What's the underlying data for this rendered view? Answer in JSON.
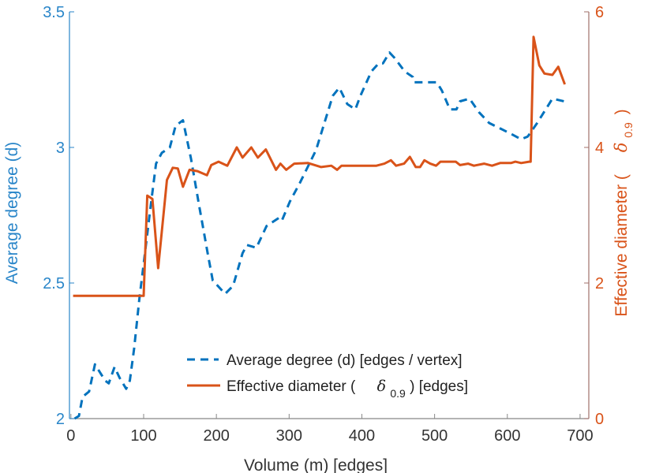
{
  "chart_data": {
    "type": "line",
    "title": "",
    "xlabel": "Volume (m) [edges]",
    "ylabel_left": "Average degree (d)",
    "ylabel_right_prefix": "Effective diameter (",
    "ylabel_right_symbol": "δ",
    "ylabel_right_sub": "0.9",
    "ylabel_right_suffix": ")",
    "xlim": [
      -2,
      712
    ],
    "ylim_left": [
      2,
      3.5
    ],
    "ylim_right": [
      0,
      6
    ],
    "xticks": [
      "0",
      "100",
      "200",
      "300",
      "400",
      "500",
      "600",
      "700"
    ],
    "yticks_left": [
      "2",
      "2.5",
      "3",
      "3.5"
    ],
    "yticks_right": [
      "0",
      "2",
      "4",
      "6"
    ],
    "grid": false,
    "legend_position": "bottom-center",
    "colors": {
      "left": "#0072bd",
      "right": "#d95319",
      "axis_left": "#2a86c9",
      "axis_right": "#a0706a",
      "axis_x": "#888888"
    },
    "legend": {
      "entry1": "Average degree (d) [edges / vertex]",
      "entry2_prefix": "Effective diameter (",
      "entry2_symbol": "δ",
      "entry2_sub": "0.9",
      "entry2_suffix": ") [edges]"
    },
    "series": [
      {
        "name": "Average degree (d) [edges / vertex]",
        "axis": "left",
        "style": "dashed",
        "x": [
          5,
          11,
          16,
          25,
          33,
          47,
          52,
          60,
          67,
          76,
          81,
          87,
          94,
          100,
          109,
          117,
          125,
          136,
          144,
          154,
          165,
          176,
          188,
          195,
          212,
          223,
          236,
          242,
          255,
          269,
          286,
          290,
          301,
          315,
          337,
          360,
          369,
          380,
          391,
          398,
          413,
          423,
          429,
          438,
          445,
          459,
          470,
          472,
          485,
          494,
          503,
          510,
          521,
          530,
          535,
          548,
          561,
          575,
          590,
          605,
          619,
          628,
          641,
          655,
          662,
          678
        ],
        "y": [
          2.0,
          2.01,
          2.08,
          2.1,
          2.2,
          2.14,
          2.13,
          2.19,
          2.15,
          2.11,
          2.14,
          2.26,
          2.44,
          2.57,
          2.77,
          2.94,
          2.98,
          3.0,
          3.08,
          3.1,
          2.96,
          2.79,
          2.61,
          2.51,
          2.46,
          2.49,
          2.61,
          2.64,
          2.63,
          2.71,
          2.74,
          2.73,
          2.8,
          2.87,
          2.99,
          3.19,
          3.22,
          3.16,
          3.14,
          3.19,
          3.28,
          3.31,
          3.31,
          3.35,
          3.33,
          3.28,
          3.26,
          3.24,
          3.24,
          3.24,
          3.24,
          3.21,
          3.14,
          3.14,
          3.17,
          3.18,
          3.13,
          3.09,
          3.07,
          3.05,
          3.03,
          3.04,
          3.09,
          3.15,
          3.18,
          3.17
        ]
      },
      {
        "name": "Effective diameter (δ0.9) [edges]",
        "axis": "right",
        "style": "solid",
        "x": [
          3,
          100,
          105,
          112,
          120,
          132,
          140,
          147,
          154,
          163,
          174,
          187,
          193,
          203,
          215,
          228,
          236,
          248,
          257,
          268,
          282,
          288,
          296,
          307,
          326,
          344,
          358,
          366,
          372,
          420,
          431,
          440,
          447,
          458,
          466,
          474,
          480,
          486,
          494,
          502,
          508,
          529,
          535,
          546,
          554,
          568,
          579,
          590,
          605,
          611,
          619,
          630,
          632,
          636,
          644,
          651,
          662,
          670,
          679
        ],
        "y": [
          1.81,
          1.81,
          3.29,
          3.24,
          2.22,
          3.52,
          3.7,
          3.69,
          3.42,
          3.67,
          3.65,
          3.59,
          3.74,
          3.79,
          3.73,
          4.0,
          3.85,
          4.0,
          3.85,
          3.97,
          3.67,
          3.76,
          3.67,
          3.76,
          3.77,
          3.71,
          3.73,
          3.67,
          3.73,
          3.73,
          3.76,
          3.81,
          3.73,
          3.76,
          3.86,
          3.71,
          3.71,
          3.81,
          3.76,
          3.73,
          3.79,
          3.79,
          3.74,
          3.76,
          3.73,
          3.76,
          3.73,
          3.77,
          3.77,
          3.79,
          3.77,
          3.79,
          3.79,
          5.63,
          5.21,
          5.09,
          5.07,
          5.19,
          4.93
        ]
      }
    ]
  }
}
